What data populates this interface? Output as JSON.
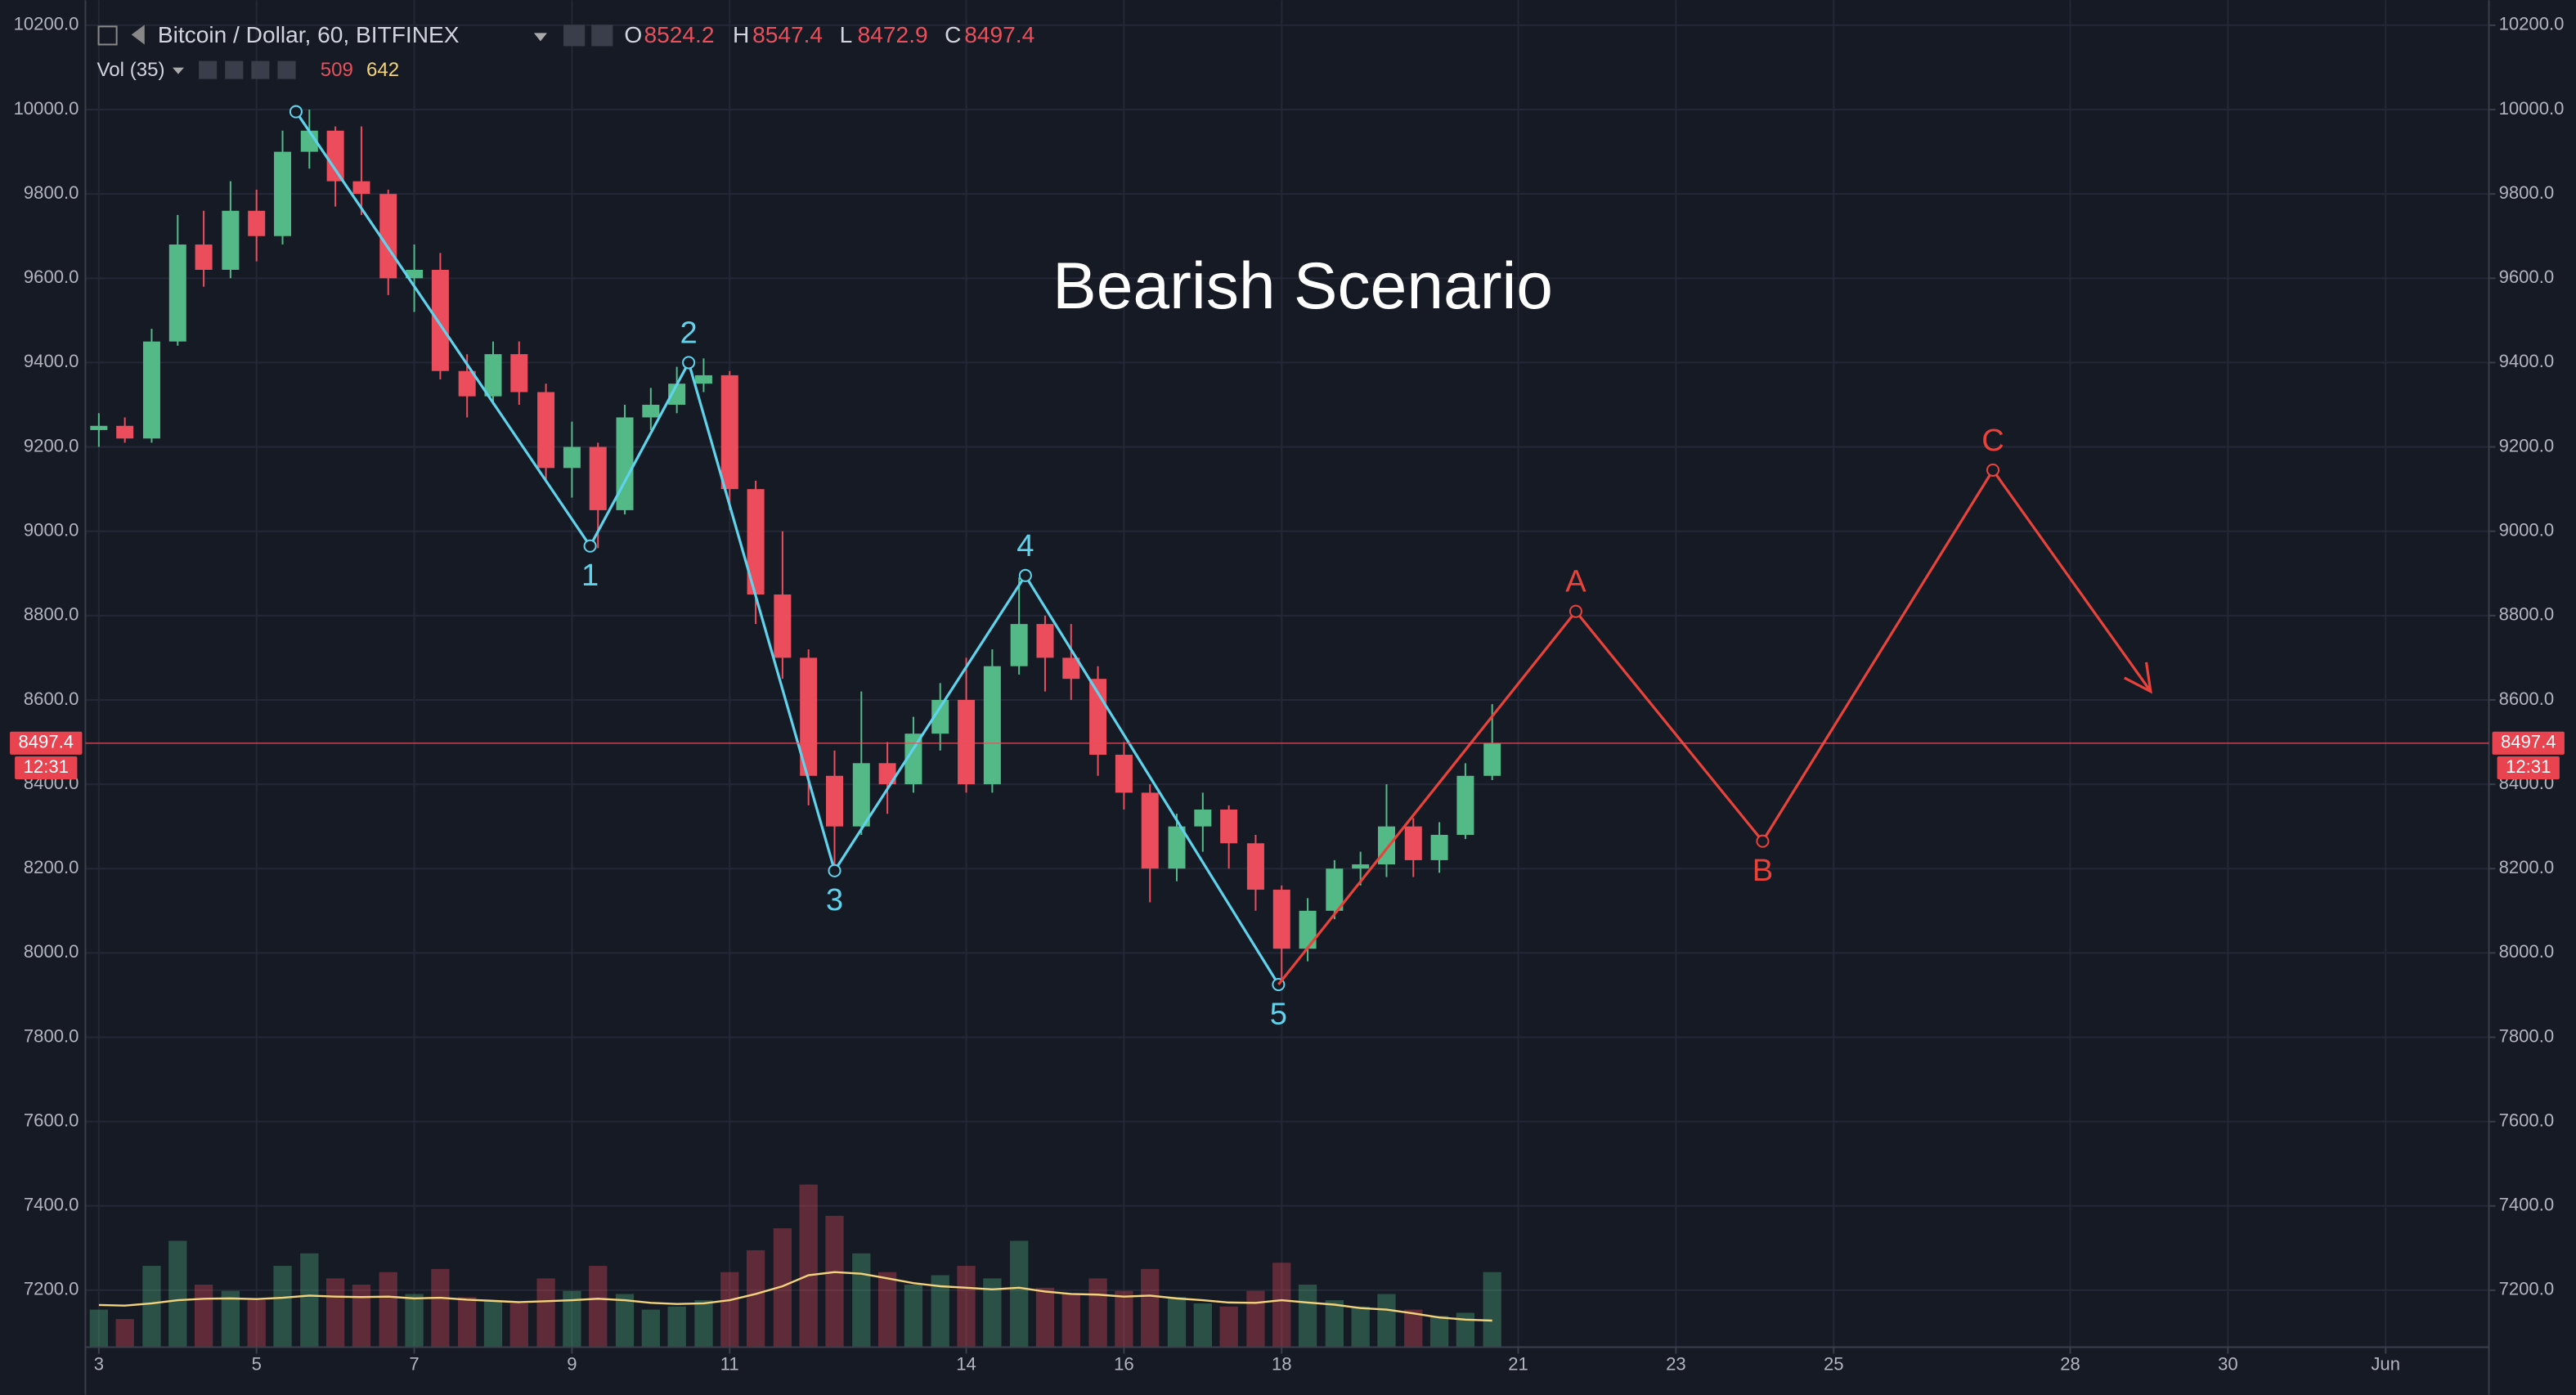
{
  "chart_data": {
    "type": "candlestick",
    "title": "Bearish Scenario",
    "legend": {
      "symbol": "Bitcoin / Dollar, 60, BITFINEX",
      "ohlc_labels": [
        "O",
        "H",
        "L",
        "C"
      ],
      "ohlc_values": [
        8524.2,
        8547.4,
        8472.9,
        8497.4
      ],
      "volume_label": "Vol (35)",
      "volume_values": [
        509,
        642
      ]
    },
    "last_price": 8497.4,
    "countdown": "12:31",
    "x": [
      3,
      3.33,
      3.67,
      4,
      4.33,
      4.67,
      5,
      5.33,
      5.67,
      6,
      6.33,
      6.67,
      7,
      7.33,
      7.67,
      8,
      8.33,
      8.67,
      9,
      9.33,
      9.67,
      10,
      10.33,
      10.67,
      11,
      11.33,
      11.67,
      12,
      12.33,
      12.67,
      13,
      13.33,
      13.67,
      14,
      14.33,
      14.67,
      15,
      15.33,
      15.67,
      16,
      16.33,
      16.67,
      17,
      17.33,
      17.67,
      18,
      18.33,
      18.67,
      19,
      19.33,
      19.67,
      20,
      20.33,
      20.67
    ],
    "open": [
      9240,
      9250,
      9220,
      9450,
      9680,
      9620,
      9760,
      9700,
      9900,
      9950,
      9830,
      9800,
      9600,
      9620,
      9380,
      9320,
      9420,
      9330,
      9150,
      9200,
      9050,
      9270,
      9300,
      9350,
      9370,
      9100,
      8850,
      8700,
      8420,
      8300,
      8450,
      8400,
      8520,
      8600,
      8400,
      8680,
      8780,
      8700,
      8650,
      8470,
      8380,
      8200,
      8300,
      8340,
      8260,
      8150,
      8010,
      8100,
      8200,
      8210,
      8300,
      8220,
      8280,
      8420
    ],
    "high": [
      9280,
      9270,
      9480,
      9750,
      9760,
      9830,
      9810,
      9950,
      10000,
      9960,
      9960,
      9810,
      9680,
      9660,
      9420,
      9450,
      9450,
      9350,
      9260,
      9210,
      9300,
      9340,
      9390,
      9410,
      9380,
      9120,
      9000,
      8720,
      8480,
      8620,
      8500,
      8560,
      8640,
      8700,
      8720,
      8890,
      8800,
      8780,
      8680,
      8500,
      8400,
      8330,
      8380,
      8350,
      8280,
      8160,
      8130,
      8220,
      8240,
      8400,
      8320,
      8310,
      8450,
      8590
    ],
    "low": [
      9200,
      9210,
      9210,
      9440,
      9580,
      9600,
      9640,
      9680,
      9860,
      9770,
      9750,
      9560,
      9520,
      9360,
      9270,
      9300,
      9300,
      9120,
      9080,
      8960,
      9040,
      9240,
      9280,
      9330,
      9050,
      8780,
      8650,
      8350,
      8190,
      8280,
      8330,
      8380,
      8480,
      8380,
      8380,
      8660,
      8620,
      8600,
      8420,
      8340,
      8120,
      8170,
      8240,
      8200,
      8100,
      7920,
      7980,
      8080,
      8160,
      8180,
      8180,
      8190,
      8270,
      8410
    ],
    "close": [
      9250,
      9220,
      9450,
      9680,
      9620,
      9760,
      9700,
      9900,
      9950,
      9830,
      9800,
      9600,
      9620,
      9380,
      9320,
      9420,
      9330,
      9150,
      9200,
      9050,
      9270,
      9300,
      9350,
      9370,
      9100,
      8850,
      8700,
      8420,
      8300,
      8450,
      8400,
      8520,
      8600,
      8400,
      8680,
      8780,
      8700,
      8650,
      8470,
      8380,
      8200,
      8300,
      8340,
      8260,
      8150,
      8010,
      8100,
      8200,
      8210,
      8300,
      8220,
      8280,
      8420,
      8497.4
    ],
    "volume": [
      1200,
      900,
      2600,
      3400,
      2000,
      1800,
      1500,
      2600,
      3000,
      2200,
      2000,
      2400,
      1700,
      2500,
      1600,
      1500,
      1400,
      2200,
      1800,
      2600,
      1700,
      1200,
      1300,
      1500,
      2400,
      3100,
      3800,
      5200,
      4200,
      3000,
      2400,
      2000,
      2300,
      2600,
      2200,
      3400,
      1900,
      1700,
      2200,
      1800,
      2500,
      1600,
      1400,
      1300,
      1800,
      2700,
      2000,
      1500,
      1300,
      1700,
      1200,
      1000,
      1100,
      2400
    ],
    "volume_ma": [
      1350,
      1330,
      1400,
      1500,
      1550,
      1560,
      1540,
      1580,
      1650,
      1620,
      1600,
      1620,
      1560,
      1580,
      1520,
      1480,
      1440,
      1470,
      1500,
      1550,
      1500,
      1420,
      1380,
      1400,
      1500,
      1700,
      1950,
      2300,
      2400,
      2350,
      2200,
      2050,
      1950,
      1900,
      1850,
      1900,
      1780,
      1700,
      1680,
      1620,
      1650,
      1560,
      1500,
      1430,
      1420,
      1500,
      1430,
      1360,
      1250,
      1200,
      1080,
      950,
      880,
      850
    ],
    "volume_lim": [
      0,
      42800
    ],
    "waves": [
      {
        "name": "impulse",
        "color": "#5fd3ec",
        "x": [
          5.5,
          9.23,
          10.48,
          12.33,
          14.75,
          17.96
        ],
        "values": [
          9995,
          8965,
          9400,
          8195,
          8895,
          7925
        ],
        "labels": [
          null,
          "1",
          "2",
          "3",
          "4",
          "5"
        ]
      },
      {
        "name": "correction",
        "color": "#e8433b",
        "x": [
          17.96,
          21.73,
          24.1,
          27.02,
          29.02
        ],
        "values": [
          7925,
          8810,
          8265,
          9145,
          8620
        ],
        "labels": [
          null,
          "A",
          "B",
          "C",
          null
        ]
      }
    ],
    "up_color": "#53b987",
    "down_color": "#eb4d5c",
    "ma_color": "#f2d27a",
    "grid": true,
    "xlim": [
      2.83,
      33.31
    ],
    "ylim": [
      7065,
      10240
    ],
    "xticks": [
      3,
      5,
      7,
      9,
      11,
      14,
      16,
      18,
      21,
      23,
      25,
      28,
      30,
      {
        "value": 32,
        "label": "Jun"
      }
    ],
    "yticks": [
      {
        "value": 7200,
        "label": "7200.0"
      },
      {
        "value": 7400,
        "label": "7400.0"
      },
      {
        "value": 7600,
        "label": "7600.0"
      },
      {
        "value": 7800,
        "label": "7800.0"
      },
      {
        "value": 8000,
        "label": "8000.0"
      },
      {
        "value": 8200,
        "label": "8200.0"
      },
      {
        "value": 8400,
        "label": "8400.0"
      },
      {
        "value": 8600,
        "label": "8600.0"
      },
      {
        "value": 8800,
        "label": "8800.0"
      },
      {
        "value": 9000,
        "label": "9000.0"
      },
      {
        "value": 9200,
        "label": "9200.0"
      },
      {
        "value": 9400,
        "label": "9400.0"
      },
      {
        "value": 9600,
        "label": "9600.0"
      },
      {
        "value": 9800,
        "label": "9800.0"
      },
      {
        "value": 10000,
        "label": "10000.0"
      },
      {
        "value": 10200,
        "label": "10200.0"
      }
    ]
  }
}
